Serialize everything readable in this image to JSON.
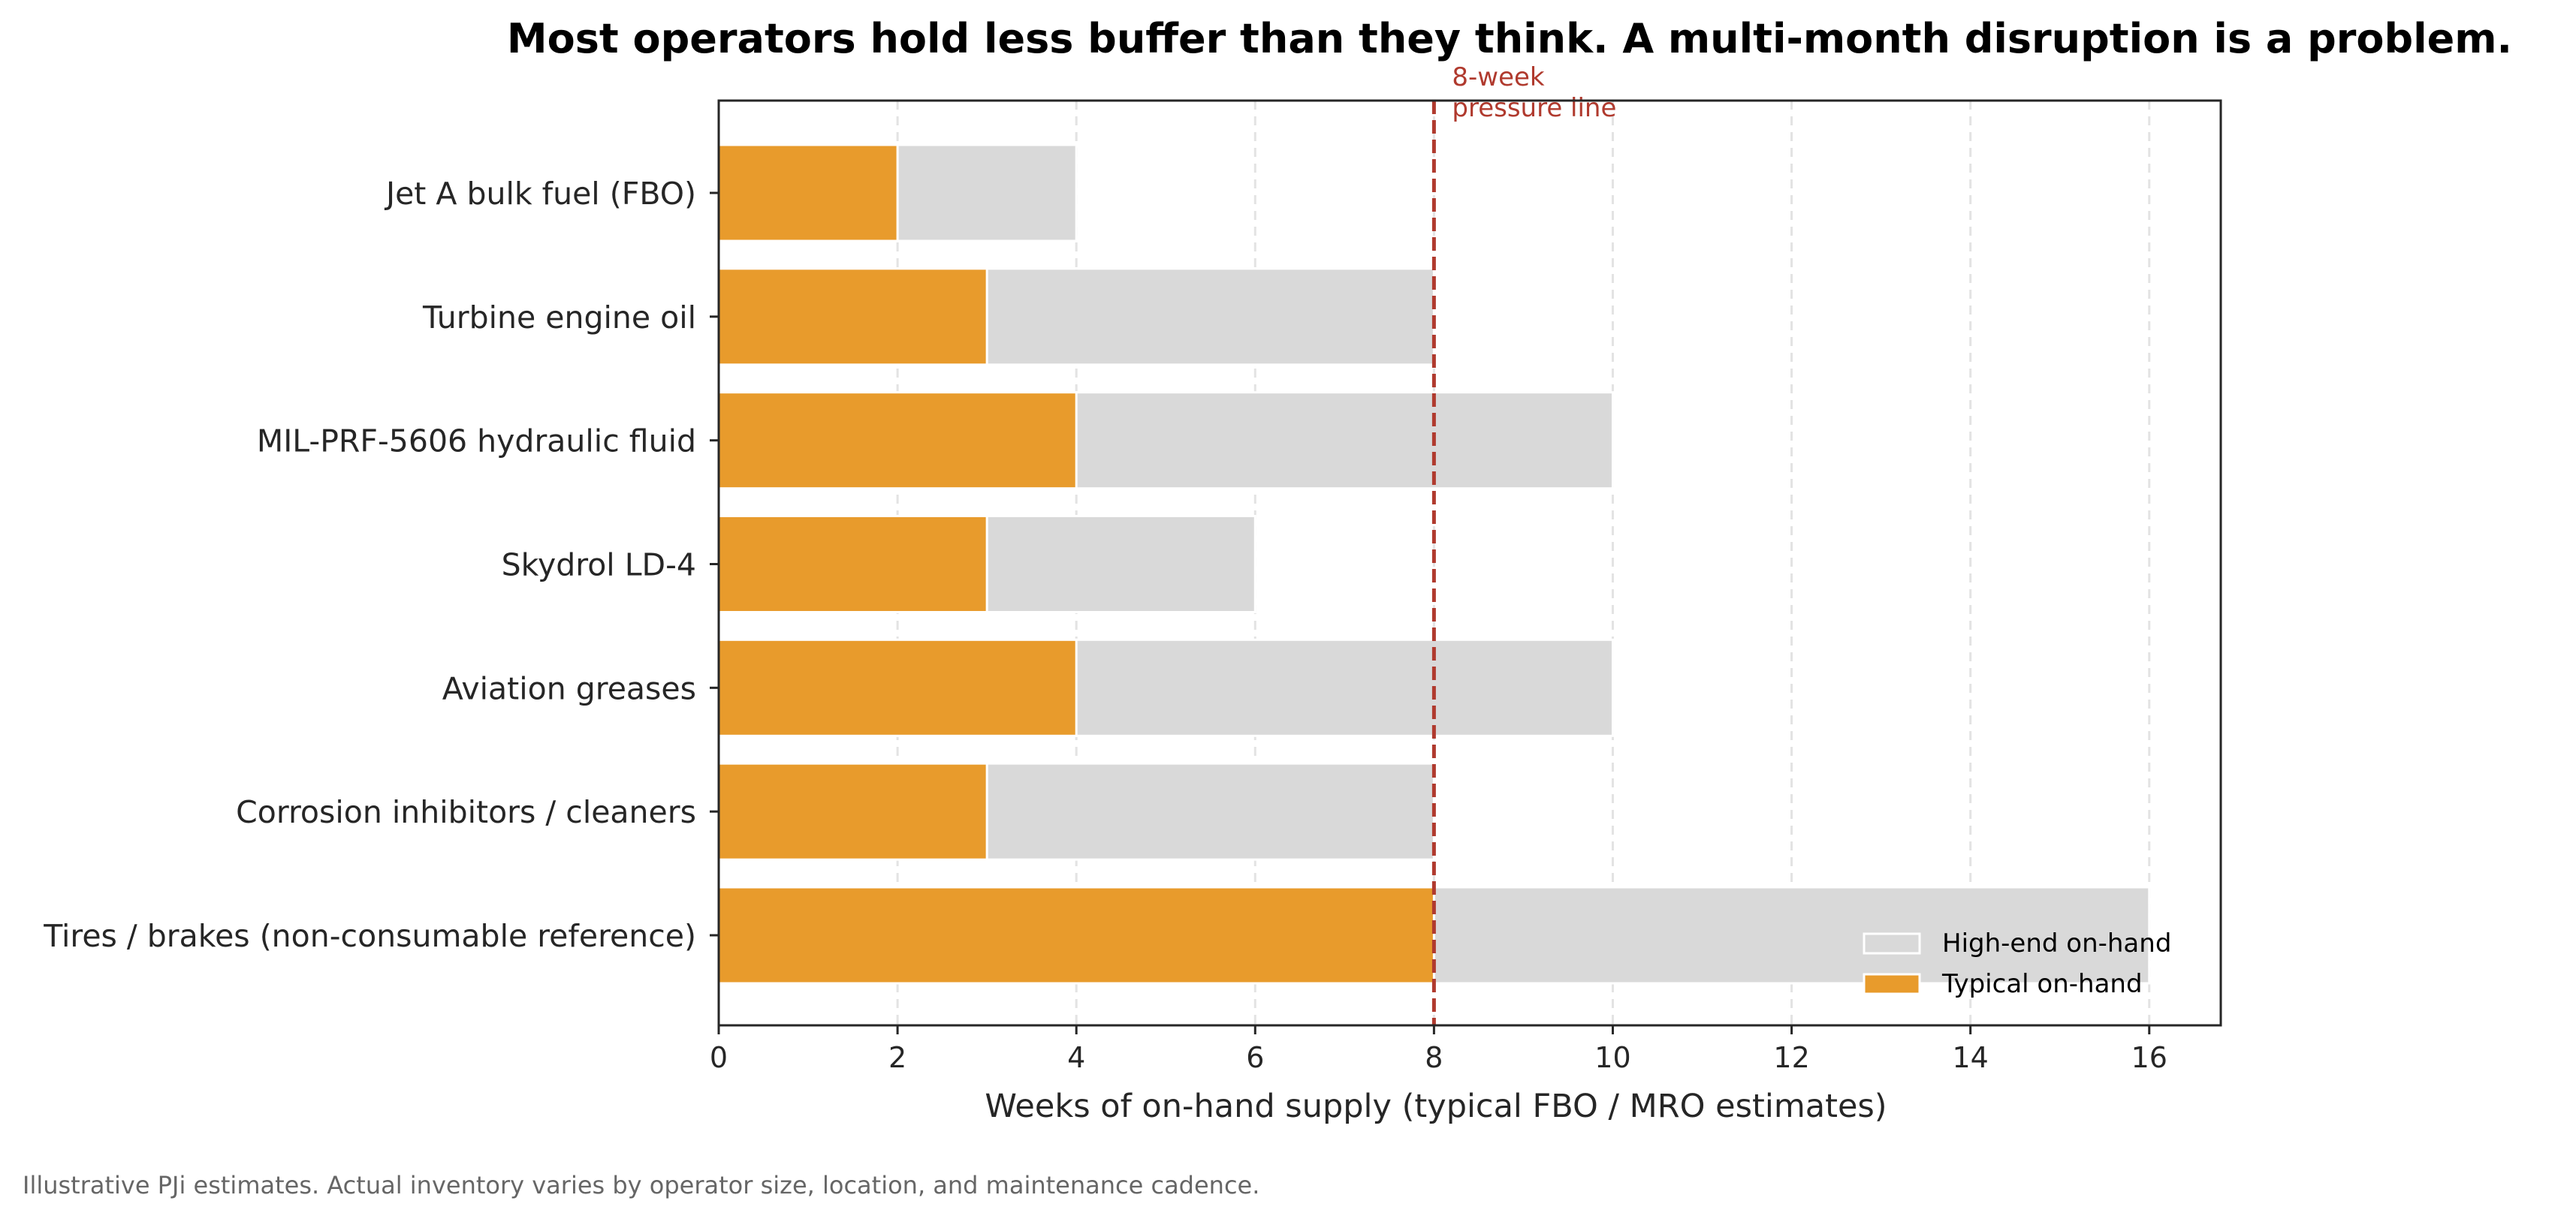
{
  "chart_data": {
    "type": "bar",
    "orientation": "horizontal",
    "stacked": "overlay",
    "title": "Most operators hold less buffer than they think. A multi-month disruption is a problem.",
    "xlabel": "Weeks of on-hand supply (typical FBO / MRO estimates)",
    "ylabel": "",
    "xlim": [
      0,
      16.8
    ],
    "xticks": [
      0,
      2,
      4,
      6,
      8,
      10,
      12,
      14,
      16
    ],
    "grid": "x-dashed",
    "categories": [
      "Jet A bulk fuel (FBO)",
      "Turbine engine oil",
      "MIL-PRF-5606 hydraulic fluid",
      "Skydrol LD-4",
      "Aviation greases",
      "Corrosion inhibitors / cleaners",
      "Tires / brakes (non-consumable reference)"
    ],
    "series": [
      {
        "name": "High-end on-hand",
        "color": "#d9d9d9",
        "values": [
          4,
          8,
          10,
          6,
          10,
          8,
          16
        ]
      },
      {
        "name": "Typical on-hand",
        "color": "#e89b2c",
        "values": [
          2,
          3,
          4,
          3,
          4,
          3,
          8
        ]
      }
    ],
    "reference_line": {
      "x": 8,
      "label_lines": [
        "8-week",
        "pressure line"
      ],
      "color": "#b03a2e"
    },
    "legend_placement": "lower-right",
    "footnote": "Illustrative PJi estimates. Actual inventory varies by operator size, location, and maintenance cadence."
  }
}
